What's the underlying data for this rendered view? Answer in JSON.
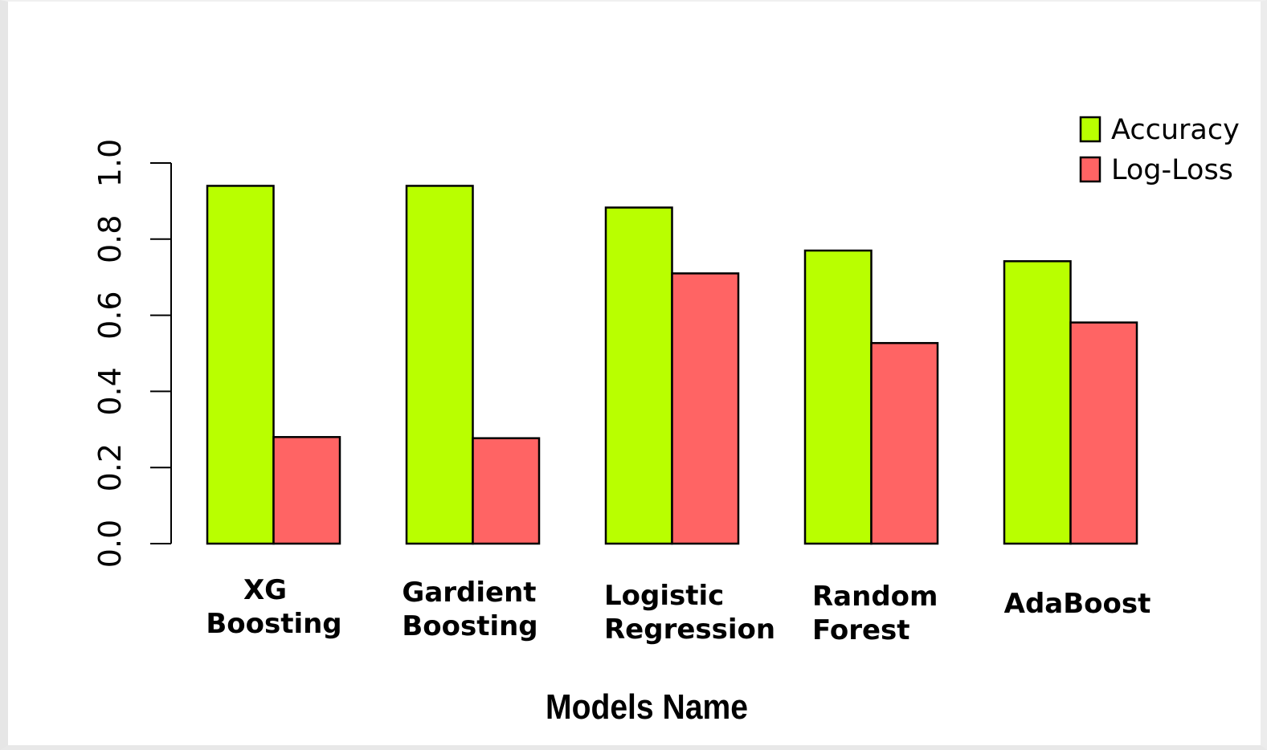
{
  "chart_data": {
    "type": "bar",
    "categories": [
      [
        "XG",
        "Boosting"
      ],
      [
        "Gardient",
        "Boosting"
      ],
      [
        "Logistic",
        "Regression"
      ],
      [
        "Random",
        "Forest"
      ],
      [
        "AdaBoost"
      ]
    ],
    "series": [
      {
        "name": "Accuracy",
        "color": "#b9ff00",
        "values": [
          0.94,
          0.94,
          0.883,
          0.77,
          0.742
        ]
      },
      {
        "name": "Log-Loss",
        "color": "#ff6464",
        "values": [
          0.28,
          0.277,
          0.71,
          0.527,
          0.581
        ]
      }
    ],
    "title": "",
    "xlabel": "Models Name",
    "ylabel": "",
    "ylim": [
      0,
      1
    ],
    "yticks": [
      "0.0",
      "0.2",
      "0.4",
      "0.6",
      "0.8",
      "1.0"
    ],
    "legend_position": "top-right",
    "grid": false
  }
}
